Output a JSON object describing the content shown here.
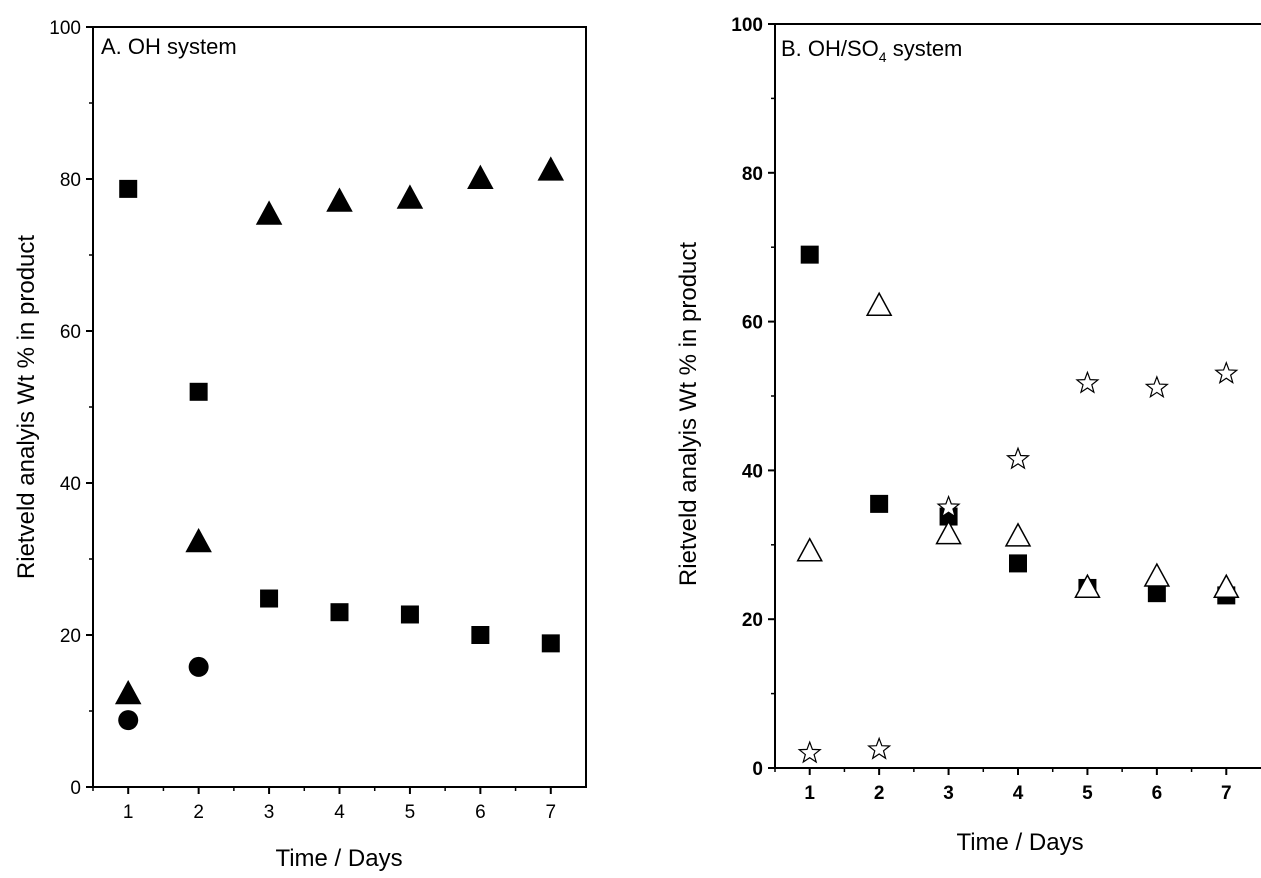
{
  "chart_data": [
    {
      "type": "scatter",
      "title": "A. OH system",
      "xlabel": "Time / Days",
      "ylabel": "Rietveld analyis Wt % in product",
      "xlim": [
        0.5,
        7.5
      ],
      "ylim": [
        0,
        100
      ],
      "x_ticks": [
        "1",
        "2",
        "3",
        "4",
        "5",
        "6",
        "7"
      ],
      "y_ticks": [
        "0",
        "20",
        "40",
        "60",
        "80",
        "100"
      ],
      "grid": false,
      "legend": "none",
      "series": [
        {
          "marker": "square-filled",
          "points": [
            [
              1,
              78.7
            ],
            [
              2,
              52
            ],
            [
              3,
              24.8
            ],
            [
              4,
              23
            ],
            [
              5,
              22.7
            ],
            [
              6,
              20
            ],
            [
              7,
              18.9
            ]
          ]
        },
        {
          "marker": "triangle-filled",
          "points": [
            [
              1,
              12.3
            ],
            [
              2,
              32.3
            ],
            [
              3,
              75.4
            ],
            [
              4,
              77.1
            ],
            [
              5,
              77.5
            ],
            [
              6,
              80.1
            ],
            [
              7,
              81.2
            ]
          ]
        },
        {
          "marker": "circle-filled",
          "points": [
            [
              1,
              8.8
            ],
            [
              2,
              15.8
            ]
          ]
        }
      ]
    },
    {
      "type": "scatter",
      "title": {
        "main": "B. OH/SO",
        "sub": "4",
        "suffix": " system"
      },
      "xlabel": "Time / Days",
      "ylabel": "Rietveld analyis Wt % in product",
      "xlim": [
        0.5,
        7.5
      ],
      "ylim": [
        0,
        100
      ],
      "x_ticks": [
        "1",
        "2",
        "3",
        "4",
        "5",
        "6",
        "7"
      ],
      "y_ticks": [
        "0",
        "20",
        "40",
        "60",
        "80",
        "100"
      ],
      "grid": false,
      "legend": "none",
      "series": [
        {
          "marker": "square-filled",
          "points": [
            [
              1,
              69
            ],
            [
              2,
              35.5
            ],
            [
              3,
              33.8
            ],
            [
              4,
              27.5
            ],
            [
              5,
              24.2
            ],
            [
              6,
              23.5
            ],
            [
              7,
              23.2
            ]
          ]
        },
        {
          "marker": "triangle-open",
          "points": [
            [
              1,
              29.2
            ],
            [
              2,
              62.2
            ],
            [
              3,
              31.5
            ],
            [
              4,
              31.2
            ],
            [
              5,
              24.3
            ],
            [
              6,
              25.8
            ],
            [
              7,
              24.3
            ]
          ]
        },
        {
          "marker": "star-open",
          "points": [
            [
              1,
              2
            ],
            [
              2,
              2.5
            ],
            [
              3,
              35
            ],
            [
              4,
              41.5
            ],
            [
              5,
              51.7
            ],
            [
              6,
              51.1
            ],
            [
              7,
              53
            ]
          ]
        }
      ]
    }
  ]
}
